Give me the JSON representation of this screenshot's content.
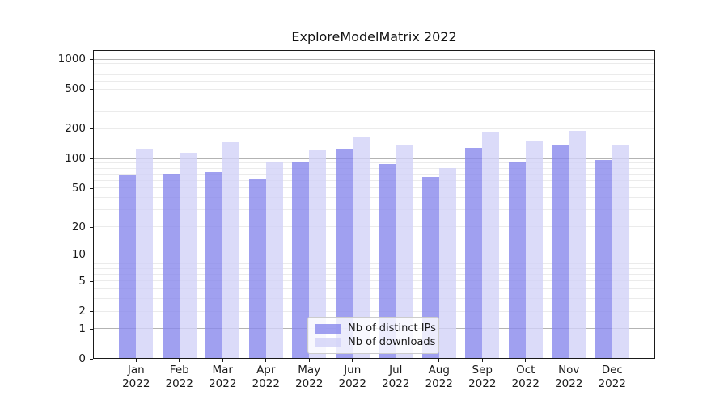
{
  "title": "ExploreModelMatrix 2022",
  "chart_data": {
    "type": "bar",
    "title": "ExploreModelMatrix 2022",
    "categories": [
      "Jan 2022",
      "Feb 2022",
      "Mar 2022",
      "Apr 2022",
      "May 2022",
      "Jun 2022",
      "Jul 2022",
      "Aug 2022",
      "Sep 2022",
      "Oct 2022",
      "Nov 2022",
      "Dec 2022"
    ],
    "series": [
      {
        "name": "Nb of distinct IPs",
        "color": "#8888ec",
        "alpha": 0.8,
        "values": [
          69,
          70,
          73,
          61,
          94,
          125,
          88,
          65,
          128,
          91,
          137,
          96
        ]
      },
      {
        "name": "Nb of downloads",
        "color": "#d2d2f8",
        "alpha": 0.8,
        "values": [
          125,
          115,
          146,
          94,
          122,
          167,
          138,
          80,
          186,
          150,
          189,
          137
        ]
      }
    ],
    "yscale": "log1p",
    "yticks": [
      0,
      1,
      2,
      5,
      10,
      20,
      50,
      100,
      200,
      500,
      1000
    ],
    "ylim": [
      0,
      1230
    ],
    "xlabel": "",
    "ylabel": "",
    "grid": "horizontal major+minor",
    "legend_position": "inside bottom-center"
  }
}
